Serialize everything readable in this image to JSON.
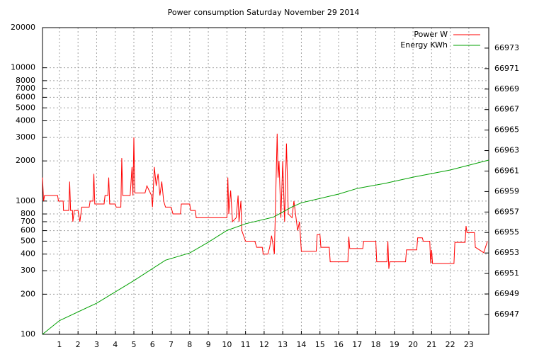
{
  "chart_data": {
    "type": "line",
    "title": "Power consumption Saturday November 29 2014",
    "xlim": [
      0.09,
      24.07
    ],
    "xticks": [
      1,
      2,
      3,
      4,
      5,
      6,
      7,
      8,
      9,
      10,
      11,
      12,
      13,
      14,
      15,
      16,
      17,
      18,
      19,
      20,
      21,
      22,
      23
    ],
    "ylim": [
      100,
      20000
    ],
    "yscale": "log",
    "yticks": [
      100,
      200,
      300,
      400,
      500,
      600,
      700,
      800,
      1000,
      2000,
      3000,
      4000,
      5000,
      6000,
      7000,
      8000,
      10000,
      20000
    ],
    "y2lim": [
      66945.06,
      66975.0
    ],
    "y2ticks": [
      66947,
      66949,
      66951,
      66953,
      66955,
      66957,
      66959,
      66961,
      66963,
      66965,
      66967,
      66969,
      66971,
      66973
    ],
    "grid": true,
    "legend": "top-right",
    "series": [
      {
        "name": "Power W",
        "color": "#ff0000",
        "x": [
          0.09,
          0.15,
          0.2,
          0.9,
          0.95,
          1.2,
          1.22,
          1.5,
          1.55,
          1.6,
          1.7,
          1.72,
          1.8,
          2.0,
          2.1,
          2.2,
          2.6,
          2.65,
          2.8,
          2.85,
          2.9,
          3.4,
          3.45,
          3.6,
          3.65,
          3.7,
          4.0,
          4.05,
          4.3,
          4.35,
          4.4,
          4.8,
          4.9,
          4.95,
          5.0,
          5.05,
          5.2,
          5.6,
          5.7,
          5.95,
          6.0,
          6.1,
          6.2,
          6.3,
          6.4,
          6.5,
          6.6,
          6.7,
          7.0,
          7.1,
          7.5,
          7.55,
          8.0,
          8.05,
          8.3,
          8.35,
          10.0,
          10.05,
          10.1,
          10.2,
          10.3,
          10.5,
          10.6,
          10.65,
          10.75,
          10.8,
          11.0,
          11.5,
          11.6,
          11.9,
          11.95,
          12.2,
          12.3,
          12.4,
          12.5,
          12.55,
          12.6,
          12.7,
          12.75,
          12.8,
          12.9,
          13.0,
          13.1,
          13.2,
          13.3,
          13.5,
          13.6,
          13.8,
          13.9,
          14.0,
          14.8,
          14.85,
          15.0,
          15.05,
          15.5,
          15.55,
          16.5,
          16.55,
          16.6,
          17.3,
          17.35,
          18.0,
          18.05,
          18.6,
          18.65,
          18.7,
          18.75,
          19.6,
          19.65,
          20.2,
          20.25,
          20.5,
          20.55,
          20.9,
          20.95,
          21.0,
          21.05,
          22.2,
          22.25,
          22.8,
          22.85,
          22.9,
          23.3,
          23.35,
          23.8,
          24.0
        ],
        "values": [
          1500,
          1000,
          1100,
          1100,
          1000,
          1000,
          850,
          850,
          1400,
          850,
          850,
          700,
          850,
          850,
          700,
          900,
          900,
          1000,
          1000,
          1600,
          950,
          950,
          1100,
          1100,
          1500,
          950,
          950,
          900,
          900,
          2100,
          1100,
          1100,
          1800,
          1100,
          3000,
          1150,
          1150,
          1150,
          1300,
          1100,
          900,
          1800,
          1300,
          1600,
          1100,
          1400,
          1000,
          900,
          900,
          800,
          800,
          950,
          950,
          850,
          850,
          750,
          750,
          1500,
          800,
          1200,
          700,
          750,
          1100,
          700,
          1000,
          600,
          500,
          500,
          450,
          450,
          400,
          400,
          450,
          550,
          450,
          400,
          800,
          3200,
          1500,
          2000,
          750,
          2000,
          700,
          2700,
          800,
          750,
          1000,
          600,
          700,
          420,
          420,
          560,
          560,
          450,
          450,
          350,
          350,
          540,
          440,
          440,
          500,
          500,
          350,
          350,
          500,
          310,
          350,
          350,
          430,
          430,
          530,
          530,
          500,
          500,
          340,
          430,
          340,
          340,
          490,
          490,
          650,
          580,
          580,
          450,
          410,
          500
        ]
      },
      {
        "name": "Energy KWh",
        "color": "#00a000",
        "axis": "y2",
        "x": [
          0.09,
          1,
          3,
          5,
          6.7,
          8,
          9,
          10,
          11,
          12.5,
          13.5,
          14,
          16,
          17,
          18.5,
          20,
          22,
          24.07
        ],
        "values": [
          66945.06,
          66946.4,
          66948.1,
          66950.3,
          66952.3,
          66953.0,
          66954.05,
          66955.2,
          66955.85,
          66956.5,
          66957.5,
          66957.9,
          66958.75,
          66959.3,
          66959.8,
          66960.4,
          66961.1,
          66962.07
        ]
      }
    ]
  }
}
